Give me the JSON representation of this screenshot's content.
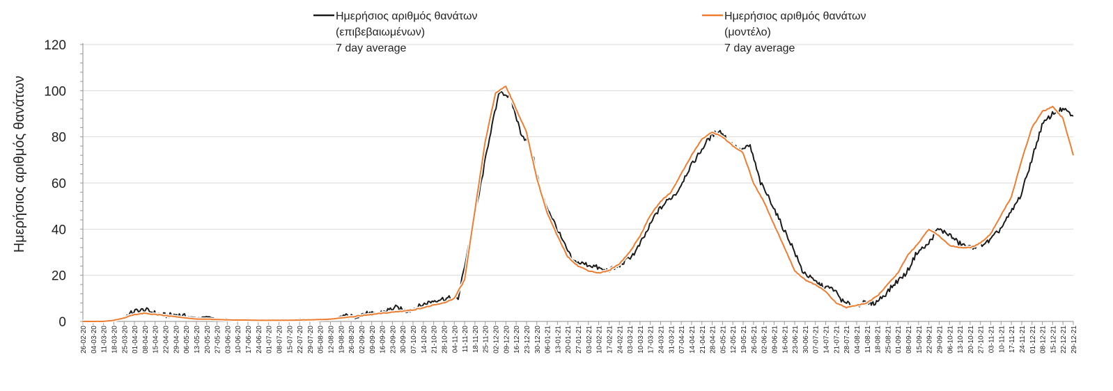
{
  "chart_data": {
    "type": "line",
    "xlabel": "",
    "ylabel": "Ημερήσιος αριθμός θανάτων",
    "ylim": [
      0,
      120
    ],
    "yticks": [
      0,
      20,
      40,
      60,
      80,
      100,
      120
    ],
    "grid": true,
    "legend_position": "top",
    "x_tick_labels": [
      "26-02-20",
      "04-03-20",
      "11-03-20",
      "18-03-20",
      "25-03-20",
      "01-04-20",
      "08-04-20",
      "15-04-20",
      "22-04-20",
      "29-04-20",
      "06-05-20",
      "13-05-20",
      "20-05-20",
      "27-05-20",
      "03-06-20",
      "10-06-20",
      "17-06-20",
      "24-06-20",
      "01-07-20",
      "08-07-20",
      "15-07-20",
      "22-07-20",
      "29-07-20",
      "05-08-20",
      "12-08-20",
      "19-08-20",
      "26-08-20",
      "02-09-20",
      "09-09-20",
      "16-09-20",
      "23-09-20",
      "30-09-20",
      "07-10-20",
      "14-10-20",
      "21-10-20",
      "28-10-20",
      "04-11-20",
      "11-11-20",
      "18-11-20",
      "25-11-20",
      "02-12-20",
      "09-12-20",
      "16-12-20",
      "23-12-20",
      "30-12-20",
      "06-01-21",
      "13-01-21",
      "20-01-21",
      "27-01-21",
      "03-02-21",
      "10-02-21",
      "17-02-21",
      "24-02-21",
      "03-03-21",
      "10-03-21",
      "17-03-21",
      "24-03-21",
      "31-03-21",
      "07-04-21",
      "14-04-21",
      "21-04-21",
      "28-04-21",
      "05-05-21",
      "12-05-21",
      "19-05-21",
      "26-05-21",
      "02-06-21",
      "09-06-21",
      "16-06-21",
      "23-06-21",
      "30-06-21",
      "07-07-21",
      "14-07-21",
      "21-07-21",
      "28-07-21",
      "04-08-21",
      "11-08-21",
      "18-08-21",
      "25-08-21",
      "01-09-21",
      "08-09-21",
      "15-09-21",
      "22-09-21",
      "29-09-21",
      "06-10-21",
      "13-10-21",
      "20-10-21",
      "27-10-21",
      "03-11-21",
      "10-11-21",
      "17-11-21",
      "24-11-21",
      "01-12-21",
      "08-12-21",
      "15-12-21",
      "22-12-21",
      "29-12-21"
    ],
    "series": [
      {
        "name": "Ημερήσιος αριθμός θανάτων (επιβεβαιωμένων) 7 day average",
        "color": "#1a1a1a",
        "x_start": "26-02-20",
        "x_end": "12-12-21",
        "values": [
          0,
          0,
          0,
          0.5,
          2,
          4.5,
          5,
          3.5,
          2.5,
          3,
          2,
          1.5,
          2,
          1,
          1,
          0.5,
          1,
          0.5,
          0.5,
          0.5,
          0.5,
          1,
          0.5,
          1,
          1,
          2.5,
          2,
          3.5,
          3,
          4.5,
          6,
          4.5,
          6,
          8,
          9.5,
          10,
          10,
          33,
          55,
          80,
          100,
          97,
          82,
          75,
          55,
          45,
          35,
          26,
          25,
          24,
          22,
          23,
          26,
          30,
          38,
          47,
          52,
          56,
          65,
          72,
          79,
          83,
          78,
          74,
          76,
          60,
          52,
          42,
          33,
          22,
          18,
          15,
          14,
          8,
          7,
          8,
          8,
          12,
          17,
          21,
          30,
          33,
          40,
          38,
          34,
          32,
          33,
          35,
          40,
          47,
          55,
          70,
          85,
          90,
          92,
          89
        ],
        "noise": 1.1
      },
      {
        "name": "Ημερήσιος αριθμός θανάτων (μοντέλο) 7 day average",
        "color": "#ed7d31",
        "x_start": "26-02-20",
        "x_end": "29-12-21",
        "values": [
          0,
          0,
          0,
          0.5,
          1.5,
          3,
          3.5,
          3,
          2.5,
          2,
          1.5,
          1,
          1,
          0.8,
          0.7,
          0.6,
          0.6,
          0.5,
          0.5,
          0.5,
          0.5,
          0.6,
          0.7,
          0.8,
          1,
          1.5,
          2,
          2.5,
          3,
          3.5,
          4,
          4.5,
          5,
          6,
          7,
          8,
          10,
          18,
          48,
          78,
          99,
          102,
          92,
          82,
          62,
          47,
          37,
          28,
          24,
          22,
          21,
          22,
          25,
          30,
          37,
          46,
          52,
          56,
          64,
          72,
          79,
          82,
          80,
          76,
          73,
          60,
          52,
          42,
          32,
          22,
          18,
          16,
          13,
          8,
          6,
          7,
          8,
          11,
          16,
          21,
          29,
          34,
          40,
          37,
          33,
          32,
          32,
          34,
          38,
          46,
          54,
          70,
          84,
          91,
          93,
          88,
          72
        ],
        "noise": 0.2
      }
    ]
  },
  "legend": {
    "items": [
      {
        "lines": [
          "Ημερήσιος αριθμός θανάτων",
          "(επιβεβαιωμένων)",
          "7 day average"
        ],
        "color": "#1a1a1a"
      },
      {
        "lines": [
          "Ημερήσιος αριθμός θανάτων",
          "(μοντέλο)",
          "7 day average"
        ],
        "color": "#ed7d31"
      }
    ]
  }
}
